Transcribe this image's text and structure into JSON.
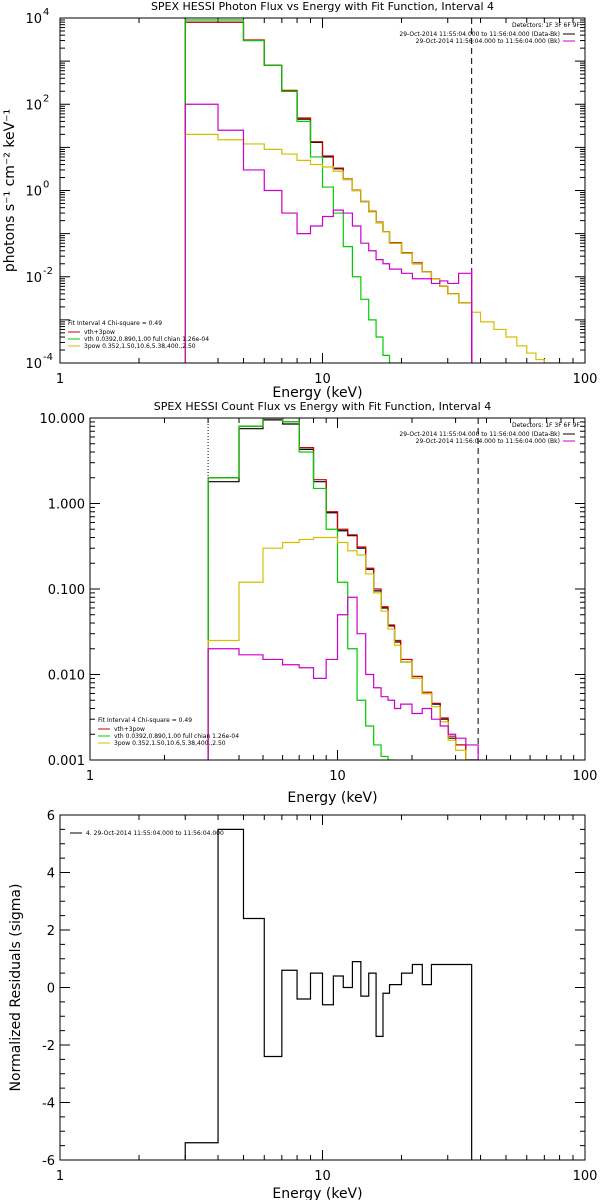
{
  "chart_data": [
    {
      "type": "line",
      "title": "SPEX HESSI Photon Flux vs Energy with Fit Function, Interval 4",
      "xlabel": "Energy (keV)",
      "ylabel": "photons s⁻¹ cm⁻² keV⁻¹",
      "xscale": "log",
      "yscale": "log",
      "xlim": [
        1,
        100
      ],
      "ylim": [
        0.0001,
        10000
      ],
      "x_ticklabels": [
        "1",
        "10",
        "100"
      ],
      "y_ticks": [
        0.0001,
        0.01,
        1,
        100,
        10000
      ],
      "y_ticklabels": [
        [
          "10",
          "-4"
        ],
        [
          "10",
          "-2"
        ],
        [
          "10",
          "0"
        ],
        [
          "10",
          "2"
        ],
        [
          "10",
          "4"
        ]
      ],
      "vlines": [
        {
          "x": 3,
          "style": "dotted",
          "color": "#000000"
        },
        {
          "x": 37,
          "style": "dashed",
          "color": "#000000"
        }
      ],
      "legend_top_right": {
        "header": "Detectors: 1F 3F 6F 9F",
        "entries": [
          {
            "text": "29-Oct-2014 11:55:04.000 to 11:56:04.000 (Data-Bk)",
            "color": "#000000"
          },
          {
            "text": "29-Oct-2014 11:56:04.000 to 11:56:04.000 (Bk)",
            "color": "#cc00cc"
          }
        ]
      },
      "legend_bottom_left": {
        "header": "Fit Interval 4   Chi-square = 0.49",
        "entries": [
          {
            "text": "vth+3pow",
            "color": "#cc0000"
          },
          {
            "text": "vth 0.0392,0.890,1.00  full chian 1.26e-04",
            "color": "#00cc00"
          },
          {
            "text": "3pow 0.352,1.50,10.6,5.38,400.,2.50",
            "color": "#d4c000"
          }
        ]
      },
      "series": [
        {
          "color": "#000000",
          "edges": [
            3,
            4,
            5,
            6,
            7,
            8,
            9,
            10,
            11,
            12,
            13,
            14,
            15,
            16,
            17,
            18,
            20,
            22,
            24,
            26,
            28,
            30,
            33,
            37
          ],
          "values": [
            8000,
            8000,
            3000,
            800,
            200,
            45,
            13,
            6,
            3.2,
            1.8,
            1.0,
            0.55,
            0.32,
            0.18,
            0.11,
            0.06,
            0.035,
            0.02,
            0.013,
            0.009,
            0.006,
            0.004,
            0.0025
          ]
        },
        {
          "color": "#cc0000",
          "edges": [
            3,
            4,
            5,
            6,
            7,
            8,
            9,
            10,
            11,
            12,
            13,
            14,
            15,
            16,
            17,
            18,
            20,
            22,
            24,
            26,
            28,
            30,
            33,
            37
          ],
          "values": [
            8000,
            8000,
            3100,
            800,
            210,
            48,
            13.5,
            6.3,
            3.3,
            1.85,
            1.02,
            0.56,
            0.33,
            0.185,
            0.11,
            0.062,
            0.036,
            0.021,
            0.013,
            0.009,
            0.006,
            0.004,
            0.0025
          ]
        },
        {
          "color": "#00cc00",
          "edges": [
            3,
            4,
            5,
            6,
            7,
            8,
            9,
            10,
            11,
            12,
            13,
            14,
            15,
            16,
            17,
            18,
            20
          ],
          "values": [
            9000,
            9000,
            3000,
            800,
            200,
            40,
            6,
            1.2,
            0.3,
            0.05,
            0.01,
            0.003,
            0.001,
            0.0004,
            0.00015,
            0.0001
          ]
        },
        {
          "color": "#d4c000",
          "edges": [
            3,
            4,
            5,
            6,
            7,
            8,
            9,
            10,
            11,
            12,
            13,
            14,
            15,
            16,
            17,
            18,
            20,
            22,
            24,
            26,
            28,
            30,
            33,
            37,
            40,
            45,
            50,
            55,
            60,
            65,
            70,
            80
          ],
          "values": [
            20,
            15,
            12,
            9,
            7,
            5,
            4,
            3.5,
            2.8,
            1.8,
            1.0,
            0.55,
            0.32,
            0.18,
            0.11,
            0.06,
            0.035,
            0.02,
            0.013,
            0.009,
            0.006,
            0.004,
            0.0025,
            0.0015,
            0.0009,
            0.0006,
            0.0004,
            0.00025,
            0.00017,
            0.00012,
            0.0001
          ]
        },
        {
          "color": "#cc00cc",
          "edges": [
            3,
            4,
            5,
            6,
            7,
            8,
            9,
            10,
            11,
            12,
            13,
            14,
            15,
            16,
            17,
            18,
            20,
            22,
            24,
            26,
            28,
            30,
            33,
            37
          ],
          "values": [
            100,
            25,
            3,
            1,
            0.3,
            0.1,
            0.15,
            0.25,
            0.35,
            0.3,
            0.15,
            0.06,
            0.04,
            0.025,
            0.02,
            0.015,
            0.012,
            0.009,
            0.009,
            0.007,
            0.008,
            0.007,
            0.012
          ]
        },
        {
          "color": "#cc00cc",
          "edges": [
            37,
            37
          ],
          "values": [
            5e-05
          ],
          "drop": true
        }
      ]
    },
    {
      "type": "line",
      "title": "SPEX HESSI Count Flux vs Energy with Fit Function, Interval 4",
      "xlabel": "Energy (keV)",
      "ylabel": "",
      "xscale": "log",
      "yscale": "log",
      "xlim": [
        1,
        100
      ],
      "ylim": [
        0.001,
        10
      ],
      "x_ticklabels": [
        "1",
        "10",
        "100"
      ],
      "y_ticks": [
        0.001,
        0.01,
        0.1,
        1,
        10
      ],
      "y_ticklabels": [
        [
          "0.001"
        ],
        [
          "0.010"
        ],
        [
          "0.100"
        ],
        [
          "1.000"
        ],
        [
          "10.000"
        ]
      ],
      "vlines": [
        {
          "x": 3,
          "style": "dotted",
          "color": "#000000"
        },
        {
          "x": 37,
          "style": "dashed",
          "color": "#000000"
        }
      ],
      "legend_top_right": {
        "header": "Detectors: 1F 3F 6F 9F",
        "entries": [
          {
            "text": "29-Oct-2014 11:55:04.000 to 11:56:04.000 (Data-Bk)",
            "color": "#000000"
          },
          {
            "text": "29-Oct-2014 11:56:04.000 to 11:56:04.000 (Bk)",
            "color": "#cc00cc"
          }
        ]
      },
      "legend_bottom_left": {
        "header": "Fit Interval 4   Chi-square = 0.49",
        "entries": [
          {
            "text": "vth+3pow",
            "color": "#cc0000"
          },
          {
            "text": "vth 0.0392,0.890,1.00  full chian 1.26e-04",
            "color": "#00cc00"
          },
          {
            "text": "3pow 0.352,1.50,10.6,5.38,400.,2.50",
            "color": "#d4c000"
          }
        ]
      },
      "series": [
        {
          "color": "#000000",
          "edges": [
            3,
            4,
            5,
            6,
            7,
            8,
            9,
            10,
            11,
            12,
            13,
            14,
            15,
            16,
            17,
            18,
            20,
            22,
            24,
            26,
            28,
            30,
            33,
            37
          ],
          "values": [
            1.8,
            7.5,
            9.5,
            8.5,
            4.3,
            1.8,
            0.78,
            0.48,
            0.42,
            0.3,
            0.17,
            0.095,
            0.06,
            0.037,
            0.024,
            0.014,
            0.009,
            0.006,
            0.0045,
            0.003,
            0.0018,
            0.0015,
            0.001
          ]
        },
        {
          "color": "#cc0000",
          "edges": [
            3,
            4,
            5,
            6,
            7,
            8,
            9,
            10,
            11,
            12,
            13,
            14,
            15,
            16,
            17,
            18,
            20,
            22,
            24,
            26,
            28,
            30,
            33,
            37
          ],
          "values": [
            2.0,
            8.0,
            10.0,
            9.0,
            4.5,
            1.9,
            0.8,
            0.5,
            0.43,
            0.31,
            0.175,
            0.1,
            0.062,
            0.038,
            0.025,
            0.015,
            0.0095,
            0.0062,
            0.0046,
            0.0031,
            0.0019,
            0.0015,
            0.001
          ]
        },
        {
          "color": "#00cc00",
          "edges": [
            3,
            4,
            5,
            6,
            7,
            8,
            9,
            10,
            11,
            12,
            13,
            14,
            15,
            16,
            17
          ],
          "values": [
            2.0,
            8.0,
            10.0,
            9.0,
            4.0,
            1.5,
            0.5,
            0.12,
            0.02,
            0.005,
            0.0025,
            0.0015,
            0.0011,
            0.001
          ]
        },
        {
          "color": "#d4c000",
          "edges": [
            3,
            4,
            5,
            6,
            7,
            8,
            9,
            10,
            11,
            12,
            13,
            14,
            15,
            16,
            17,
            18,
            20,
            22,
            24,
            26,
            28,
            30,
            33,
            37,
            40
          ],
          "values": [
            0.025,
            0.12,
            0.3,
            0.35,
            0.38,
            0.4,
            0.4,
            0.35,
            0.28,
            0.25,
            0.15,
            0.09,
            0.055,
            0.034,
            0.022,
            0.014,
            0.009,
            0.006,
            0.0042,
            0.0028,
            0.0017,
            0.0013,
            0.001,
            0.001
          ]
        },
        {
          "color": "#cc00cc",
          "edges": [
            3,
            4,
            5,
            6,
            7,
            8,
            9,
            10,
            11,
            12,
            13,
            14,
            15,
            16,
            17,
            18,
            20,
            22,
            24,
            26,
            28,
            30,
            33,
            37
          ],
          "values": [
            0.02,
            0.017,
            0.015,
            0.013,
            0.012,
            0.009,
            0.015,
            0.05,
            0.08,
            0.03,
            0.01,
            0.007,
            0.0055,
            0.005,
            0.004,
            0.0045,
            0.0035,
            0.004,
            0.003,
            0.0025,
            0.002,
            0.0018,
            0.0015
          ]
        }
      ]
    },
    {
      "type": "line",
      "title": "",
      "xlabel": "Energy (keV)",
      "ylabel": "Normalized Residuals (sigma)",
      "xscale": "log",
      "yscale": "linear",
      "xlim": [
        1,
        100
      ],
      "ylim": [
        -6,
        6
      ],
      "x_ticklabels": [
        "1",
        "10",
        "100"
      ],
      "y_ticks": [
        -6,
        -4,
        -2,
        0,
        2,
        4,
        6
      ],
      "y_ticklabels": [
        [
          "-6"
        ],
        [
          "-4"
        ],
        [
          "-2"
        ],
        [
          "0"
        ],
        [
          "2"
        ],
        [
          "4"
        ],
        [
          "6"
        ]
      ],
      "vlines": [],
      "legend_top_left": {
        "entries": [
          {
            "text": "4. 29-Oct-2014 11:55:04.000 to 11:56:04.000",
            "color": "#000000"
          }
        ]
      },
      "series": [
        {
          "color": "#000000",
          "edges": [
            3,
            4,
            5,
            6,
            7,
            8,
            9,
            10,
            11,
            12,
            13,
            14,
            15,
            16,
            17,
            18,
            20,
            22,
            24,
            26,
            28,
            30,
            33,
            37
          ],
          "values": [
            -5.4,
            5.5,
            2.4,
            -2.4,
            0.6,
            -0.4,
            0.5,
            -0.6,
            0.4,
            0.0,
            0.9,
            -0.3,
            0.5,
            -1.7,
            -0.2,
            0.1,
            0.5,
            0.8,
            0.1,
            0.8,
            0.8,
            0.8,
            0.8
          ],
          "edge_drop": true
        }
      ]
    }
  ]
}
